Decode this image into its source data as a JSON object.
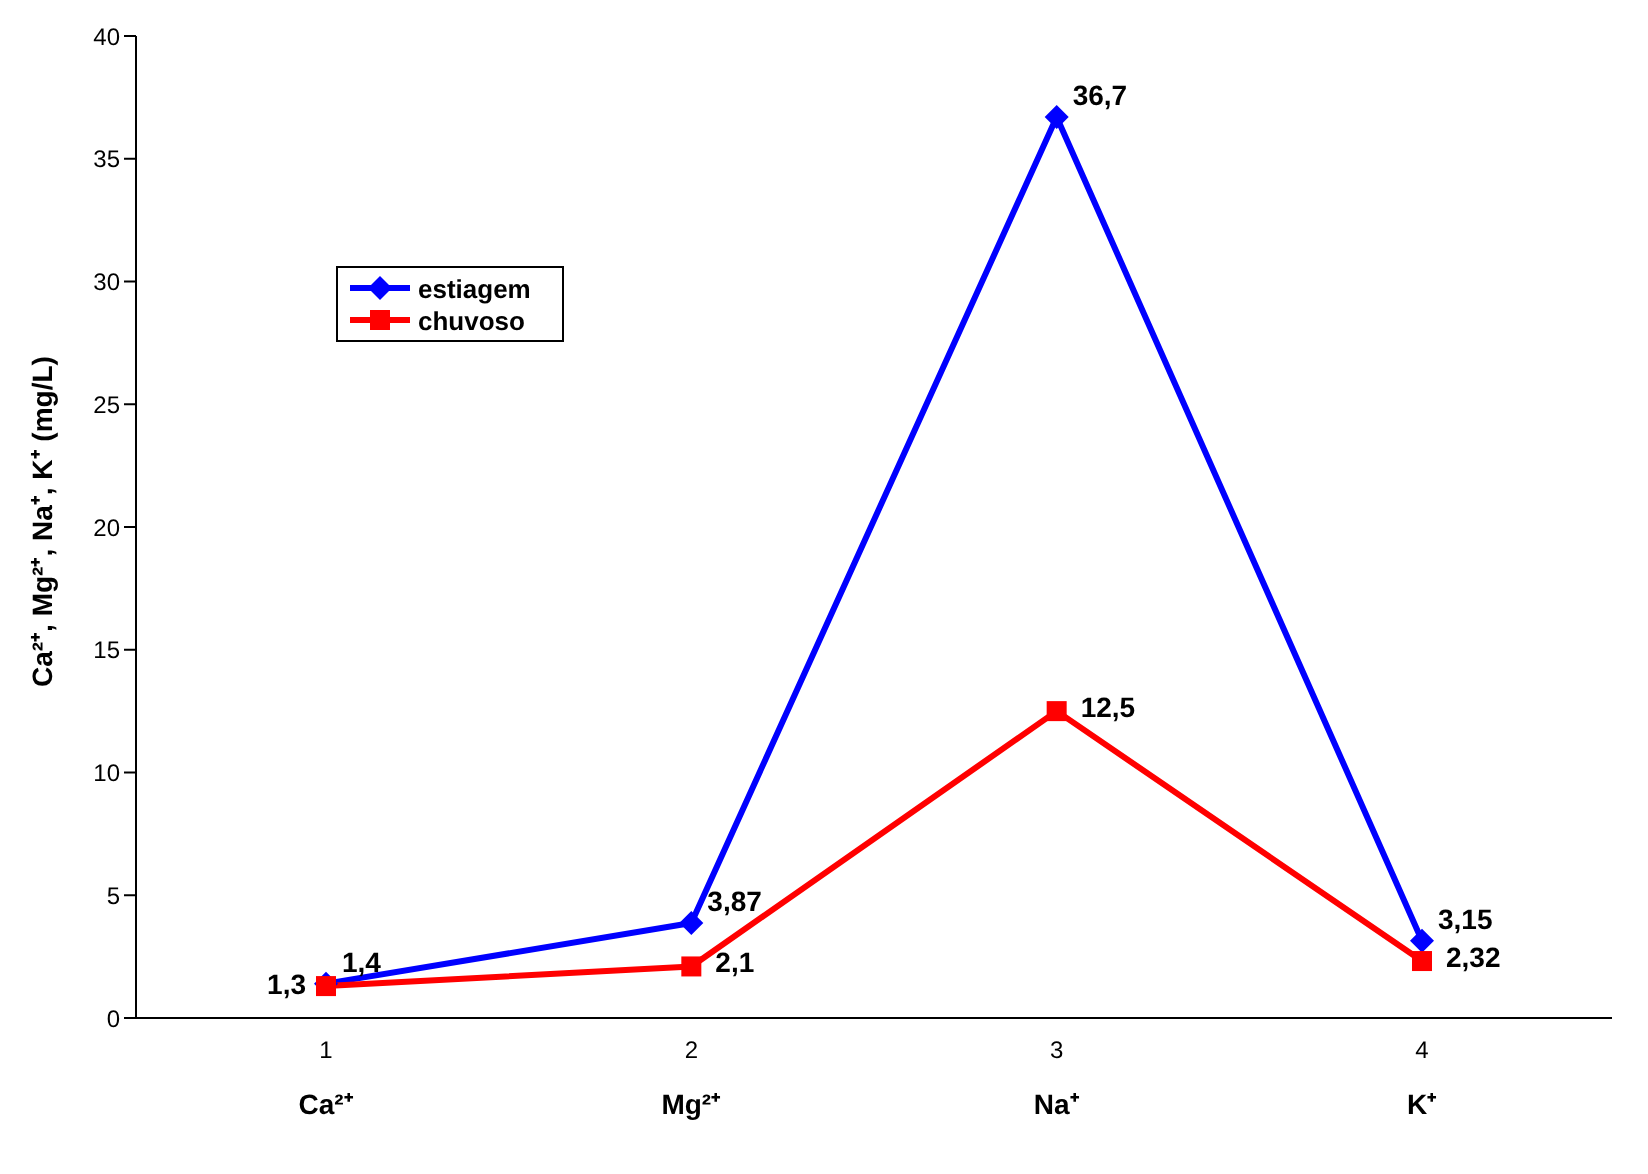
{
  "chart_data": {
    "type": "line",
    "ylabel": "Ca²⁺, Mg²⁺, Na⁺, K⁺ (mg/L)",
    "categories": [
      "1",
      "2",
      "3",
      "4"
    ],
    "annotations": [
      "Ca²⁺",
      "Mg²⁺",
      "Na⁺",
      "K⁺"
    ],
    "series": [
      {
        "name": "estiagem",
        "color": "#0000ff",
        "marker": "diamond",
        "values": [
          1.4,
          3.87,
          36.7,
          3.15
        ],
        "value_labels": [
          "1,4",
          "3,87",
          "36,7",
          "3,15"
        ]
      },
      {
        "name": "chuvoso",
        "color": "#ff0000",
        "marker": "square",
        "values": [
          1.3,
          2.1,
          12.5,
          2.32
        ],
        "value_labels": [
          "1,3",
          "2,1",
          "12,5",
          "2,32"
        ]
      }
    ],
    "ylim": [
      0,
      40
    ],
    "yticks": [
      0,
      5,
      10,
      15,
      20,
      25,
      30,
      35,
      40
    ],
    "grid": false,
    "legend": "top left"
  }
}
